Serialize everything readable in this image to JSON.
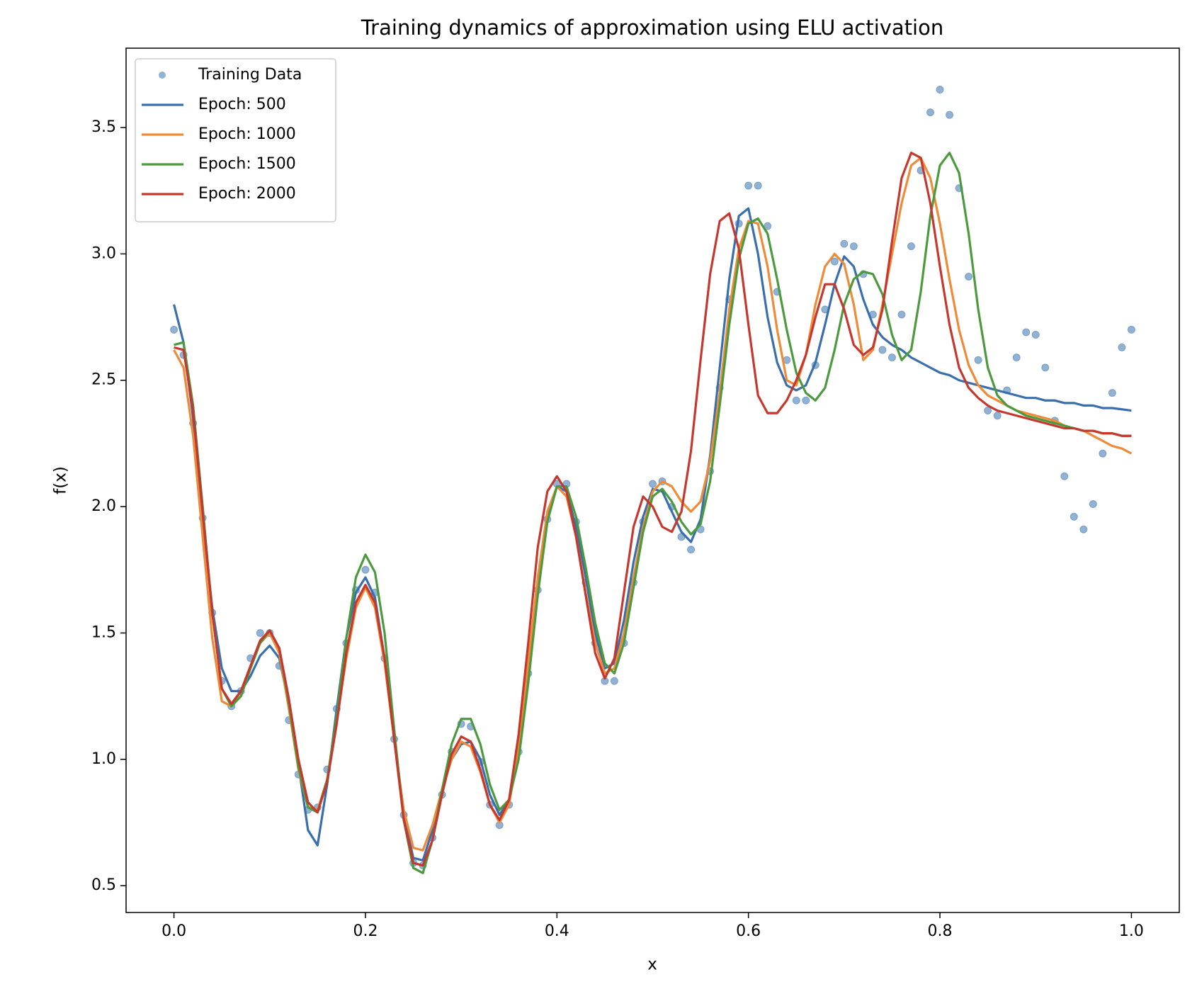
{
  "chart_data": {
    "type": "line",
    "title": "Training dynamics of approximation using ELU activation",
    "x_label": "x",
    "y_label": "f(x)",
    "xlim": [
      -0.05,
      1.05
    ],
    "ylim": [
      0.394,
      3.814
    ],
    "xticks": [
      {
        "value": 0,
        "label": "0.0"
      },
      0.2,
      0.4,
      0.6,
      0.8,
      {
        "value": 1,
        "label": "1.0"
      }
    ],
    "yticks": [
      0.5,
      {
        "value": 1,
        "label": "1.0"
      },
      1.5,
      {
        "value": 2,
        "label": "2.0"
      },
      2.5,
      {
        "value": 3,
        "label": "3.0"
      },
      3.5
    ],
    "grid": false,
    "legend": "upper left",
    "x": [
      0,
      0.01,
      0.02,
      0.03,
      0.04,
      0.05,
      0.06,
      0.07,
      0.08,
      0.09,
      0.1,
      0.11,
      0.12,
      0.13,
      0.14,
      0.15,
      0.16,
      0.17,
      0.18,
      0.19,
      0.2,
      0.21,
      0.22,
      0.23,
      0.24,
      0.25,
      0.26,
      0.27,
      0.28,
      0.29,
      0.3,
      0.31,
      0.32,
      0.33,
      0.34,
      0.35,
      0.36,
      0.37,
      0.38,
      0.39,
      0.4,
      0.41,
      0.42,
      0.43,
      0.44,
      0.45,
      0.46,
      0.47,
      0.48,
      0.49,
      0.5,
      0.51,
      0.52,
      0.53,
      0.54,
      0.55,
      0.56,
      0.57,
      0.58,
      0.59,
      0.6,
      0.61,
      0.62,
      0.63,
      0.64,
      0.65,
      0.66,
      0.67,
      0.68,
      0.69,
      0.7,
      0.71,
      0.72,
      0.73,
      0.74,
      0.75,
      0.76,
      0.77,
      0.78,
      0.79,
      0.8,
      0.81,
      0.82,
      0.83,
      0.84,
      0.85,
      0.86,
      0.87,
      0.88,
      0.89,
      0.9,
      0.91,
      0.92,
      0.93,
      0.94,
      0.95,
      0.96,
      0.97,
      0.98,
      0.99,
      1
    ],
    "series": [
      {
        "name": "Training Data",
        "type": "scatter",
        "color": "#4a7fb8",
        "values": [
          2.7,
          2.6,
          2.33,
          1.955,
          1.58,
          1.31,
          1.21,
          1.27,
          1.4,
          1.5,
          1.5,
          1.37,
          1.155,
          0.94,
          0.8,
          0.81,
          0.96,
          1.2,
          1.46,
          1.67,
          1.75,
          1.66,
          1.4,
          1.08,
          0.78,
          0.59,
          0.58,
          0.69,
          0.86,
          1.03,
          1.14,
          1.13,
          0.99,
          0.82,
          0.74,
          0.82,
          1.03,
          1.34,
          1.67,
          1.95,
          2.09,
          2.09,
          1.94,
          1.7,
          1.46,
          1.31,
          1.31,
          1.46,
          1.7,
          1.94,
          2.09,
          2.1,
          2.0,
          1.88,
          1.83,
          1.91,
          2.14,
          2.47,
          2.82,
          3.12,
          3.27,
          3.27,
          3.11,
          2.85,
          2.58,
          2.42,
          2.42,
          2.56,
          2.78,
          2.97,
          3.04,
          3.03,
          2.92,
          2.76,
          2.62,
          2.59,
          2.76,
          3.03,
          3.33,
          3.56,
          3.65,
          3.55,
          3.26,
          2.91,
          2.58,
          2.38,
          2.36,
          2.46,
          2.59,
          2.69,
          2.68,
          2.55,
          2.34,
          2.12,
          1.96,
          1.91,
          2.01,
          2.21,
          2.45,
          2.63,
          2.7
        ]
      },
      {
        "name": "Epoch: 500",
        "type": "line",
        "color": "#3a6fae",
        "values": [
          2.8,
          2.65,
          2.35,
          1.95,
          1.6,
          1.36,
          1.27,
          1.27,
          1.33,
          1.41,
          1.45,
          1.4,
          1.22,
          0.98,
          0.72,
          0.66,
          0.9,
          1.2,
          1.48,
          1.66,
          1.72,
          1.64,
          1.4,
          1.08,
          0.78,
          0.61,
          0.6,
          0.72,
          0.88,
          1.0,
          1.06,
          1.07,
          1.0,
          0.86,
          0.78,
          0.84,
          1.05,
          1.35,
          1.68,
          1.95,
          2.08,
          2.06,
          1.92,
          1.72,
          1.5,
          1.36,
          1.38,
          1.55,
          1.78,
          1.96,
          2.07,
          2.06,
          1.98,
          1.9,
          1.86,
          1.95,
          2.2,
          2.55,
          2.9,
          3.15,
          3.18,
          3.0,
          2.75,
          2.57,
          2.48,
          2.46,
          2.48,
          2.57,
          2.72,
          2.88,
          2.99,
          2.95,
          2.82,
          2.72,
          2.67,
          2.64,
          2.62,
          2.59,
          2.57,
          2.55,
          2.53,
          2.52,
          2.5,
          2.49,
          2.48,
          2.47,
          2.46,
          2.45,
          2.44,
          2.43,
          2.43,
          2.42,
          2.42,
          2.41,
          2.41,
          2.4,
          2.4,
          2.39,
          2.39,
          2.385,
          2.38
        ]
      },
      {
        "name": "Epoch: 1000",
        "type": "line",
        "color": "#ef8a38",
        "values": [
          2.62,
          2.55,
          2.28,
          1.88,
          1.48,
          1.23,
          1.21,
          1.27,
          1.37,
          1.46,
          1.5,
          1.42,
          1.2,
          0.96,
          0.81,
          0.8,
          0.92,
          1.15,
          1.4,
          1.6,
          1.68,
          1.6,
          1.38,
          1.08,
          0.8,
          0.65,
          0.64,
          0.74,
          0.88,
          1.0,
          1.07,
          1.05,
          0.95,
          0.82,
          0.75,
          0.82,
          1.05,
          1.38,
          1.72,
          1.98,
          2.08,
          2.04,
          1.88,
          1.66,
          1.46,
          1.34,
          1.36,
          1.5,
          1.72,
          1.92,
          2.06,
          2.1,
          2.08,
          2.02,
          1.98,
          2.02,
          2.18,
          2.45,
          2.78,
          3.02,
          3.13,
          3.12,
          2.95,
          2.7,
          2.5,
          2.48,
          2.6,
          2.8,
          2.95,
          3.0,
          2.96,
          2.8,
          2.58,
          2.62,
          2.8,
          3.0,
          3.2,
          3.35,
          3.38,
          3.3,
          3.12,
          2.9,
          2.7,
          2.56,
          2.48,
          2.44,
          2.42,
          2.4,
          2.38,
          2.37,
          2.36,
          2.35,
          2.34,
          2.32,
          2.31,
          2.3,
          2.28,
          2.26,
          2.24,
          2.23,
          2.21
        ]
      },
      {
        "name": "Epoch: 1500",
        "type": "line",
        "color": "#4b9a3d",
        "values": [
          2.64,
          2.65,
          2.4,
          2.0,
          1.58,
          1.28,
          1.21,
          1.25,
          1.36,
          1.46,
          1.51,
          1.44,
          1.22,
          0.97,
          0.81,
          0.79,
          0.92,
          1.17,
          1.48,
          1.72,
          1.81,
          1.74,
          1.5,
          1.12,
          0.76,
          0.57,
          0.55,
          0.68,
          0.88,
          1.06,
          1.16,
          1.16,
          1.06,
          0.9,
          0.8,
          0.84,
          1.0,
          1.3,
          1.65,
          1.94,
          2.08,
          2.08,
          1.96,
          1.76,
          1.54,
          1.38,
          1.34,
          1.46,
          1.68,
          1.9,
          2.04,
          2.07,
          2.02,
          1.94,
          1.89,
          1.93,
          2.1,
          2.4,
          2.72,
          2.98,
          3.12,
          3.14,
          3.08,
          2.9,
          2.7,
          2.53,
          2.45,
          2.42,
          2.47,
          2.62,
          2.8,
          2.9,
          2.93,
          2.92,
          2.84,
          2.68,
          2.58,
          2.62,
          2.85,
          3.15,
          3.35,
          3.4,
          3.32,
          3.08,
          2.78,
          2.55,
          2.44,
          2.4,
          2.38,
          2.36,
          2.35,
          2.34,
          2.33,
          2.32,
          2.31,
          2.3,
          2.3,
          2.29,
          2.29,
          2.28,
          2.28
        ]
      },
      {
        "name": "Epoch: 2000",
        "type": "line",
        "color": "#c6382e",
        "values": [
          2.63,
          2.62,
          2.38,
          1.98,
          1.58,
          1.28,
          1.22,
          1.27,
          1.37,
          1.47,
          1.51,
          1.44,
          1.24,
          1.0,
          0.83,
          0.79,
          0.91,
          1.14,
          1.42,
          1.62,
          1.69,
          1.62,
          1.4,
          1.08,
          0.76,
          0.59,
          0.58,
          0.68,
          0.86,
          1.02,
          1.09,
          1.07,
          0.96,
          0.82,
          0.76,
          0.84,
          1.1,
          1.46,
          1.84,
          2.06,
          2.12,
          2.06,
          1.88,
          1.65,
          1.42,
          1.32,
          1.4,
          1.66,
          1.92,
          2.04,
          2.0,
          1.92,
          1.9,
          1.98,
          2.22,
          2.58,
          2.92,
          3.13,
          3.16,
          3.02,
          2.72,
          2.44,
          2.37,
          2.37,
          2.42,
          2.5,
          2.6,
          2.75,
          2.88,
          2.88,
          2.78,
          2.64,
          2.6,
          2.63,
          2.78,
          3.05,
          3.3,
          3.4,
          3.38,
          3.2,
          2.95,
          2.72,
          2.55,
          2.47,
          2.43,
          2.4,
          2.38,
          2.37,
          2.36,
          2.35,
          2.34,
          2.33,
          2.32,
          2.31,
          2.31,
          2.3,
          2.3,
          2.29,
          2.29,
          2.28,
          2.28
        ]
      }
    ]
  }
}
